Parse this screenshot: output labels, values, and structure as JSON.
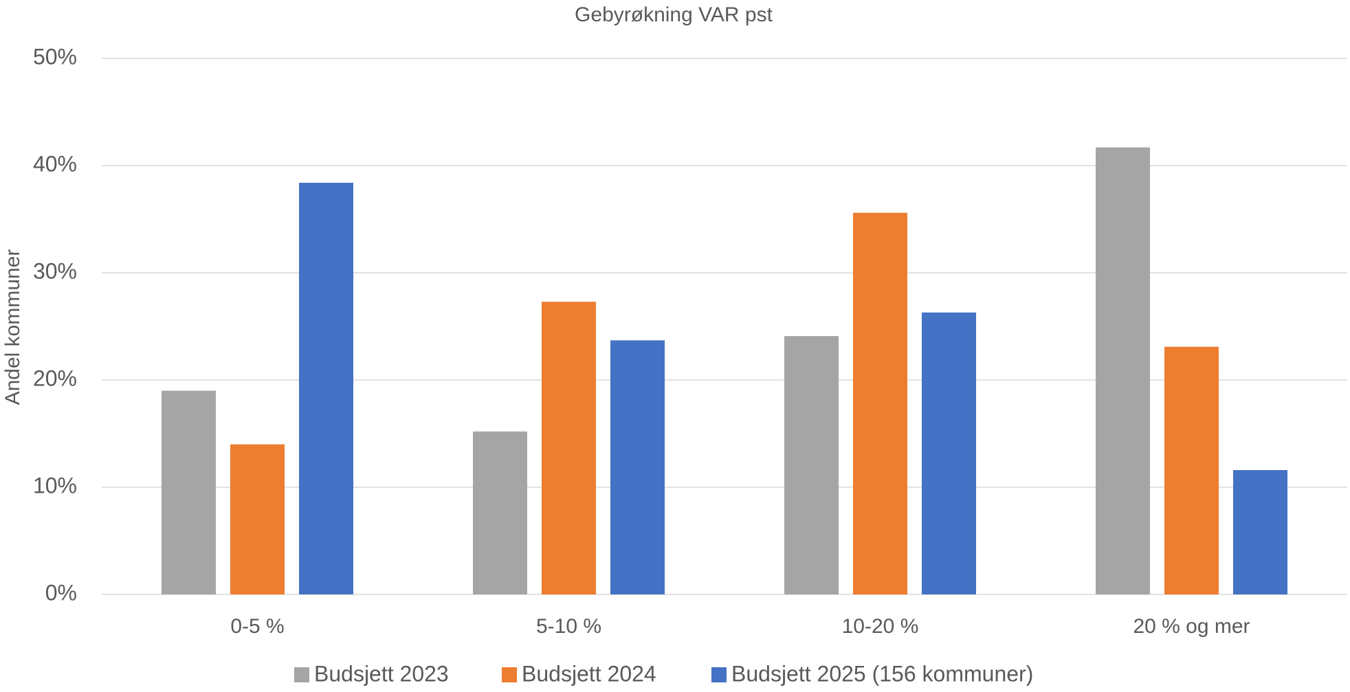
{
  "chart_data": {
    "type": "bar",
    "title": "Gebyrøkning VAR pst",
    "y_label": "Andel kommuner",
    "categories": [
      "0-5 %",
      "5-10 %",
      "10-20 %",
      "20 % og mer"
    ],
    "series": [
      {
        "name": "Budsjett 2023",
        "color": "#a5a5a5",
        "values": [
          19,
          15.2,
          24.1,
          41.7
        ]
      },
      {
        "name": "Budsjett 2024",
        "color": "#ed7d31",
        "values": [
          14,
          27.3,
          35.6,
          23.1
        ]
      },
      {
        "name": "Budsjett 2025 (156 kommuner)",
        "color": "#4472c4",
        "values": [
          38.4,
          23.7,
          26.3,
          11.6
        ]
      }
    ],
    "ylim": [
      0,
      50
    ],
    "yticks": [
      {
        "value": 0,
        "label": "0%"
      },
      {
        "value": 10,
        "label": "10%"
      },
      {
        "value": 20,
        "label": "20%"
      },
      {
        "value": 30,
        "label": "30%"
      },
      {
        "value": 40,
        "label": "40%"
      },
      {
        "value": 50,
        "label": "50%"
      }
    ],
    "grid": true,
    "legend": "bottom"
  }
}
